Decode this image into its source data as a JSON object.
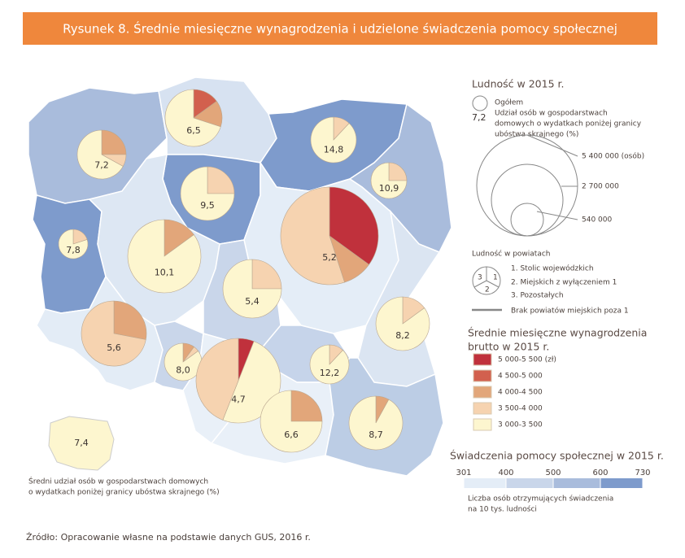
{
  "title": "Rysunek 8. Średnie miesięczne wynagrodzenia i udzielone świadczenia pomocy społecznej",
  "population_legend": {
    "title": "Ludność w 2015 r.",
    "total": "Ogółem",
    "example_value": "7,2",
    "description": [
      "Udział osób w gospodarstwach",
      "domowych o wydatkach poniżej granicy",
      "ubóstwa skrajnego (%)"
    ],
    "sizes": [
      "5 400 000 (osób)",
      "2 700 000",
      "540 000"
    ]
  },
  "district_legend": {
    "title": "Ludność w powiatach",
    "pie_numbers": [
      "1",
      "2",
      "3"
    ],
    "items": [
      "1. Stolic wojewódzkich",
      "2. Miejskich z wyłączeniem 1",
      "3. Pozostałych"
    ],
    "missing": "Brak powiatów miejskich poza 1"
  },
  "wage_legend": {
    "title": [
      "Średnie miesięczne wynagrodzenia",
      "brutto w 2015 r."
    ],
    "classes": [
      {
        "label": "5 000-5 500 (zł)",
        "color": "#c0313c"
      },
      {
        "label": "4 500-5 000",
        "color": "#d2604e"
      },
      {
        "label": "4 000-4 500",
        "color": "#e2a67a"
      },
      {
        "label": "3 500-4 000",
        "color": "#f6d3b0"
      },
      {
        "label": "3 000-3 500",
        "color": "#fdf6cf"
      }
    ]
  },
  "benefit_legend": {
    "title": "Świadczenia  pomocy społecznej w 2015 r.",
    "ticks": [
      301,
      400,
      500,
      600,
      730
    ],
    "colors": [
      "#e4edf7",
      "#c9d6ea",
      "#a9bcdc",
      "#7e9bcc"
    ],
    "note": [
      "Liczba osób otrzymujących świadczenia",
      "na 10 tys. ludności"
    ]
  },
  "region_colors": [
    "#a9bcdc",
    "#d7e2f1",
    "#7e9bcc",
    "#a9bcdc",
    "#7e9bcc",
    "#7e9bcc",
    "#dde7f3",
    "#e4edf7",
    "#c9d6ea",
    "#dbe5f2",
    "#e3ecf6",
    "#c9d6ea",
    "#e9f0f8",
    "#c6d4ea",
    "#e9f0f8",
    "#bccde5"
  ],
  "national": {
    "value": "7,4",
    "note": [
      "Średni udział osób w gospodarstwach domowych",
      "o wydatkach poniżej granicy ubóstwa skrajnego (%)"
    ]
  },
  "pies": [
    {
      "label": "6,5",
      "slices": [
        {
          "share": 15,
          "color": "#d2604e"
        },
        {
          "share": 15,
          "color": "#e2a67a"
        },
        {
          "share": 70,
          "color": "#fdf6cf"
        }
      ]
    },
    {
      "label": "7,2",
      "slices": [
        {
          "share": 25,
          "color": "#e2a67a"
        },
        {
          "share": 8,
          "color": "#f6d3b0"
        },
        {
          "share": 67,
          "color": "#fdf6cf"
        }
      ]
    },
    {
      "label": "14,8",
      "slices": [
        {
          "share": 12,
          "color": "#f6d3b0"
        },
        {
          "share": 88,
          "color": "#fdf6cf"
        }
      ]
    },
    {
      "label": "9,5",
      "slices": [
        {
          "share": 25,
          "color": "#f6d3b0"
        },
        {
          "share": 75,
          "color": "#fdf6cf"
        }
      ]
    },
    {
      "label": "10,9",
      "slices": [
        {
          "share": 25,
          "color": "#f6d3b0"
        },
        {
          "share": 75,
          "color": "#fdf6cf"
        }
      ]
    },
    {
      "label": "7,8",
      "slices": [
        {
          "share": 20,
          "color": "#f6d3b0"
        },
        {
          "share": 80,
          "color": "#fdf6cf"
        }
      ]
    },
    {
      "label": "10,1",
      "slices": [
        {
          "share": 15,
          "color": "#e2a67a"
        },
        {
          "share": 85,
          "color": "#fdf6cf"
        }
      ]
    },
    {
      "label": "5,2",
      "slices": [
        {
          "share": 35,
          "color": "#c0313c"
        },
        {
          "share": 10,
          "color": "#e2a67a"
        },
        {
          "share": 55,
          "color": "#f6d3b0"
        }
      ]
    },
    {
      "label": "5,4",
      "slices": [
        {
          "share": 25,
          "color": "#f6d3b0"
        },
        {
          "share": 75,
          "color": "#fdf6cf"
        }
      ]
    },
    {
      "label": "8,2",
      "slices": [
        {
          "share": 15,
          "color": "#f6d3b0"
        },
        {
          "share": 85,
          "color": "#fdf6cf"
        }
      ]
    },
    {
      "label": "5,6",
      "slices": [
        {
          "share": 28,
          "color": "#e2a67a"
        },
        {
          "share": 72,
          "color": "#f6d3b0"
        }
      ]
    },
    {
      "label": "8,0",
      "slices": [
        {
          "share": 10,
          "color": "#e2a67a"
        },
        {
          "share": 5,
          "color": "#f6d3b0"
        },
        {
          "share": 85,
          "color": "#fdf6cf"
        }
      ]
    },
    {
      "label": "12,2",
      "slices": [
        {
          "share": 12,
          "color": "#f6d3b0"
        },
        {
          "share": 88,
          "color": "#fdf6cf"
        }
      ]
    },
    {
      "label": "4,7",
      "slices": [
        {
          "share": 6,
          "color": "#c0313c"
        },
        {
          "share": 50,
          "color": "#fdf6cf"
        },
        {
          "share": 44,
          "color": "#f6d3b0"
        }
      ]
    },
    {
      "label": "6,6",
      "slices": [
        {
          "share": 25,
          "color": "#e2a67a"
        },
        {
          "share": 75,
          "color": "#fdf6cf"
        }
      ]
    },
    {
      "label": "8,7",
      "slices": [
        {
          "share": 8,
          "color": "#e2a67a"
        },
        {
          "share": 92,
          "color": "#fdf6cf"
        }
      ]
    }
  ],
  "source": "Źródło: Opracowanie własne na podstawie danych GUS, 2016 r."
}
